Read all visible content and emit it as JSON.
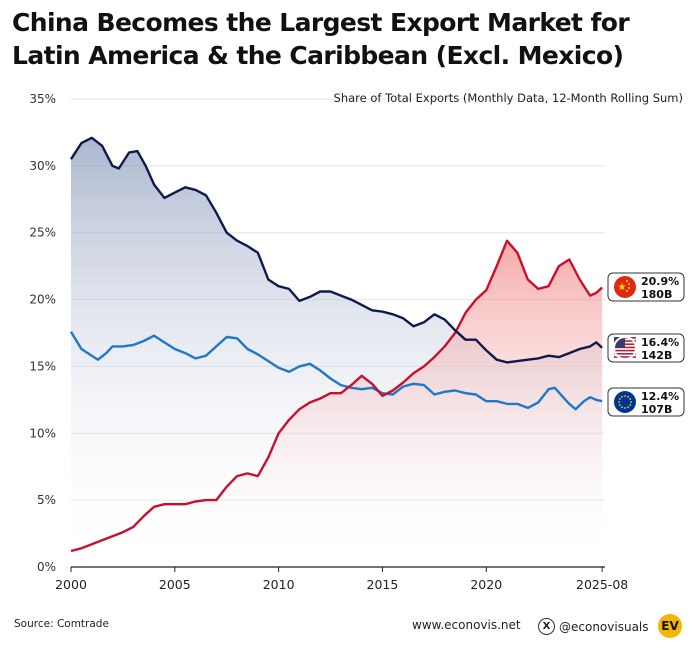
{
  "header": {
    "title_line1": "China Becomes the Largest Export Market for",
    "title_line2": "Latin America & the Caribbean (Excl. Mexico)"
  },
  "footer": {
    "source": "Source: Comtrade",
    "website": "www.econovis.net",
    "social": "@econovisuals",
    "logo": "EV"
  },
  "chart_data": {
    "type": "line",
    "subtitle": "Share of Total Exports (Monthly Data, 12-Month Rolling Sum)",
    "ylim": [
      0,
      35
    ],
    "y_ticks": [
      0,
      5,
      10,
      15,
      20,
      25,
      30,
      35
    ],
    "y_tick_labels": [
      "0%",
      "5%",
      "10%",
      "15%",
      "20%",
      "25%",
      "30%",
      "35%"
    ],
    "xlim": [
      2000,
      2025.67
    ],
    "x_ticks": [
      2000,
      2005,
      2010,
      2015,
      2020,
      2025.58
    ],
    "x_tick_labels": [
      "2000",
      "2005",
      "2010",
      "2015",
      "2020",
      "2025-08"
    ],
    "grid": true,
    "series": [
      {
        "name": "United States",
        "color": "#0d1b4c",
        "fill": "#8fa0bf",
        "end_label_pct": "16.4%",
        "end_label_value": "142B",
        "flag_icon": "us-flag-icon",
        "points": [
          [
            2000.0,
            30.5
          ],
          [
            2000.5,
            31.7
          ],
          [
            2001.0,
            32.1
          ],
          [
            2001.5,
            31.5
          ],
          [
            2002.0,
            30.0
          ],
          [
            2002.3,
            29.8
          ],
          [
            2002.8,
            31.0
          ],
          [
            2003.2,
            31.1
          ],
          [
            2003.6,
            30.0
          ],
          [
            2004.0,
            28.6
          ],
          [
            2004.5,
            27.6
          ],
          [
            2005.0,
            28.0
          ],
          [
            2005.5,
            28.4
          ],
          [
            2006.0,
            28.2
          ],
          [
            2006.5,
            27.8
          ],
          [
            2007.0,
            26.5
          ],
          [
            2007.5,
            25.0
          ],
          [
            2008.0,
            24.4
          ],
          [
            2008.5,
            24.0
          ],
          [
            2009.0,
            23.5
          ],
          [
            2009.5,
            21.5
          ],
          [
            2010.0,
            21.0
          ],
          [
            2010.5,
            20.8
          ],
          [
            2011.0,
            19.9
          ],
          [
            2011.5,
            20.2
          ],
          [
            2012.0,
            20.6
          ],
          [
            2012.5,
            20.6
          ],
          [
            2013.0,
            20.3
          ],
          [
            2013.5,
            20.0
          ],
          [
            2014.0,
            19.6
          ],
          [
            2014.5,
            19.2
          ],
          [
            2015.0,
            19.1
          ],
          [
            2015.5,
            18.9
          ],
          [
            2016.0,
            18.6
          ],
          [
            2016.5,
            18.0
          ],
          [
            2017.0,
            18.3
          ],
          [
            2017.5,
            18.9
          ],
          [
            2018.0,
            18.5
          ],
          [
            2018.5,
            17.7
          ],
          [
            2019.0,
            17.0
          ],
          [
            2019.5,
            17.0
          ],
          [
            2020.0,
            16.2
          ],
          [
            2020.5,
            15.5
          ],
          [
            2021.0,
            15.3
          ],
          [
            2021.5,
            15.4
          ],
          [
            2022.0,
            15.5
          ],
          [
            2022.5,
            15.6
          ],
          [
            2023.0,
            15.8
          ],
          [
            2023.5,
            15.7
          ],
          [
            2024.0,
            16.0
          ],
          [
            2024.5,
            16.3
          ],
          [
            2025.0,
            16.5
          ],
          [
            2025.3,
            16.8
          ],
          [
            2025.58,
            16.4
          ]
        ]
      },
      {
        "name": "China",
        "color": "#c8102e",
        "fill": "#f29a9a",
        "end_label_pct": "20.9%",
        "end_label_value": "180B",
        "flag_icon": "china-flag-icon",
        "points": [
          [
            2000.0,
            1.2
          ],
          [
            2000.5,
            1.4
          ],
          [
            2001.0,
            1.7
          ],
          [
            2001.5,
            2.0
          ],
          [
            2002.0,
            2.3
          ],
          [
            2002.5,
            2.6
          ],
          [
            2003.0,
            3.0
          ],
          [
            2003.5,
            3.8
          ],
          [
            2004.0,
            4.5
          ],
          [
            2004.5,
            4.7
          ],
          [
            2005.0,
            4.7
          ],
          [
            2005.5,
            4.7
          ],
          [
            2006.0,
            4.9
          ],
          [
            2006.5,
            5.0
          ],
          [
            2007.0,
            5.0
          ],
          [
            2007.5,
            6.0
          ],
          [
            2008.0,
            6.8
          ],
          [
            2008.5,
            7.0
          ],
          [
            2009.0,
            6.8
          ],
          [
            2009.5,
            8.2
          ],
          [
            2010.0,
            10.0
          ],
          [
            2010.5,
            11.0
          ],
          [
            2011.0,
            11.8
          ],
          [
            2011.5,
            12.3
          ],
          [
            2012.0,
            12.6
          ],
          [
            2012.5,
            13.0
          ],
          [
            2013.0,
            13.0
          ],
          [
            2013.5,
            13.6
          ],
          [
            2014.0,
            14.3
          ],
          [
            2014.5,
            13.7
          ],
          [
            2015.0,
            12.8
          ],
          [
            2015.5,
            13.2
          ],
          [
            2016.0,
            13.8
          ],
          [
            2016.5,
            14.5
          ],
          [
            2017.0,
            15.0
          ],
          [
            2017.5,
            15.7
          ],
          [
            2018.0,
            16.5
          ],
          [
            2018.5,
            17.5
          ],
          [
            2019.0,
            19.0
          ],
          [
            2019.5,
            20.0
          ],
          [
            2020.0,
            20.7
          ],
          [
            2020.5,
            22.5
          ],
          [
            2021.0,
            24.4
          ],
          [
            2021.5,
            23.5
          ],
          [
            2022.0,
            21.5
          ],
          [
            2022.5,
            20.8
          ],
          [
            2023.0,
            21.0
          ],
          [
            2023.5,
            22.5
          ],
          [
            2024.0,
            23.0
          ],
          [
            2024.5,
            21.5
          ],
          [
            2025.0,
            20.3
          ],
          [
            2025.3,
            20.5
          ],
          [
            2025.58,
            20.9
          ]
        ]
      },
      {
        "name": "European Union",
        "color": "#1f78c8",
        "fill": null,
        "end_label_pct": "12.4%",
        "end_label_value": "107B",
        "flag_icon": "eu-flag-icon",
        "points": [
          [
            2000.0,
            17.6
          ],
          [
            2000.5,
            16.3
          ],
          [
            2001.0,
            15.8
          ],
          [
            2001.3,
            15.5
          ],
          [
            2001.7,
            16.0
          ],
          [
            2002.0,
            16.5
          ],
          [
            2002.5,
            16.5
          ],
          [
            2003.0,
            16.6
          ],
          [
            2003.5,
            16.9
          ],
          [
            2004.0,
            17.3
          ],
          [
            2004.5,
            16.8
          ],
          [
            2005.0,
            16.3
          ],
          [
            2005.5,
            16.0
          ],
          [
            2006.0,
            15.6
          ],
          [
            2006.5,
            15.8
          ],
          [
            2007.0,
            16.5
          ],
          [
            2007.5,
            17.2
          ],
          [
            2008.0,
            17.1
          ],
          [
            2008.5,
            16.3
          ],
          [
            2009.0,
            15.9
          ],
          [
            2009.5,
            15.4
          ],
          [
            2010.0,
            14.9
          ],
          [
            2010.5,
            14.6
          ],
          [
            2011.0,
            15.0
          ],
          [
            2011.5,
            15.2
          ],
          [
            2012.0,
            14.7
          ],
          [
            2012.5,
            14.1
          ],
          [
            2013.0,
            13.6
          ],
          [
            2013.5,
            13.4
          ],
          [
            2014.0,
            13.3
          ],
          [
            2014.5,
            13.4
          ],
          [
            2015.0,
            13.0
          ],
          [
            2015.5,
            12.9
          ],
          [
            2016.0,
            13.5
          ],
          [
            2016.5,
            13.7
          ],
          [
            2017.0,
            13.6
          ],
          [
            2017.5,
            12.9
          ],
          [
            2018.0,
            13.1
          ],
          [
            2018.5,
            13.2
          ],
          [
            2019.0,
            13.0
          ],
          [
            2019.5,
            12.9
          ],
          [
            2020.0,
            12.4
          ],
          [
            2020.5,
            12.4
          ],
          [
            2021.0,
            12.2
          ],
          [
            2021.5,
            12.2
          ],
          [
            2022.0,
            11.9
          ],
          [
            2022.5,
            12.3
          ],
          [
            2023.0,
            13.3
          ],
          [
            2023.3,
            13.4
          ],
          [
            2023.7,
            12.7
          ],
          [
            2024.0,
            12.2
          ],
          [
            2024.3,
            11.8
          ],
          [
            2024.7,
            12.4
          ],
          [
            2025.0,
            12.7
          ],
          [
            2025.3,
            12.5
          ],
          [
            2025.58,
            12.4
          ]
        ]
      }
    ]
  }
}
